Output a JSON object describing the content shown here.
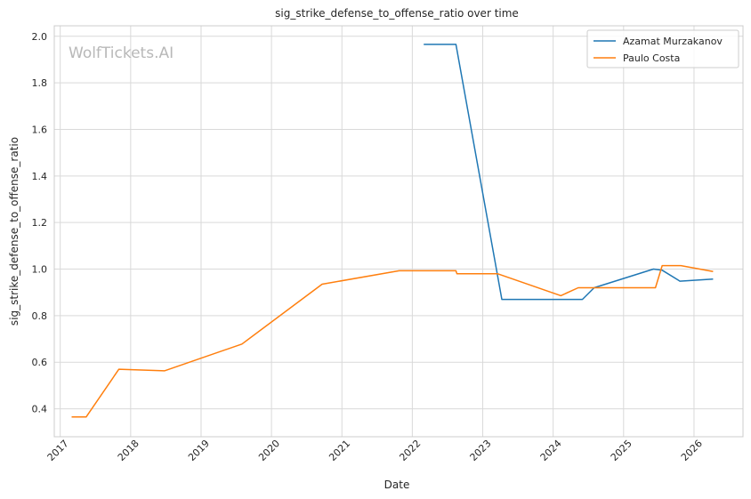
{
  "chart_data": {
    "type": "line",
    "title": "sig_strike_defense_to_offense_ratio over time",
    "xlabel": "Date",
    "ylabel": "sig_strike_defense_to_offense_ratio",
    "watermark": "WolfTickets.AI",
    "x_ticks": [
      "2017",
      "2018",
      "2019",
      "2020",
      "2021",
      "2022",
      "2023",
      "2024",
      "2025",
      "2026"
    ],
    "y_ticks": [
      "0.4",
      "0.6",
      "0.8",
      "1.0",
      "1.2",
      "1.4",
      "1.6",
      "1.8",
      "2.0"
    ],
    "xlim": [
      "2016-12-01",
      "2026-09-12"
    ],
    "ylim": [
      0.28,
      2.045
    ],
    "grid": true,
    "legend_position": "top-right",
    "series": [
      {
        "name": "Azamat Murzakanov",
        "color": "#1f77b4",
        "points": [
          [
            "2022-03-01",
            1.965
          ],
          [
            "2022-08-15",
            1.965
          ],
          [
            "2023-04-10",
            0.87
          ],
          [
            "2024-06-01",
            0.87
          ],
          [
            "2024-08-01",
            0.92
          ],
          [
            "2025-06-05",
            1.0
          ],
          [
            "2025-07-20",
            0.995
          ],
          [
            "2025-10-20",
            0.948
          ],
          [
            "2026-04-10",
            0.957
          ]
        ]
      },
      {
        "name": "Paulo Costa",
        "color": "#ff7f0e",
        "points": [
          [
            "2017-03-01",
            0.365
          ],
          [
            "2017-05-15",
            0.365
          ],
          [
            "2017-11-01",
            0.57
          ],
          [
            "2018-06-25",
            0.563
          ],
          [
            "2019-08-01",
            0.678
          ],
          [
            "2020-09-20",
            0.935
          ],
          [
            "2021-10-25",
            0.993
          ],
          [
            "2022-08-15",
            0.993
          ],
          [
            "2022-08-20",
            0.98
          ],
          [
            "2023-03-20",
            0.98
          ],
          [
            "2024-02-10",
            0.886
          ],
          [
            "2024-05-10",
            0.92
          ],
          [
            "2025-06-15",
            0.92
          ],
          [
            "2025-07-20",
            1.015
          ],
          [
            "2025-10-25",
            1.015
          ],
          [
            "2026-04-10",
            0.99
          ]
        ]
      }
    ]
  }
}
